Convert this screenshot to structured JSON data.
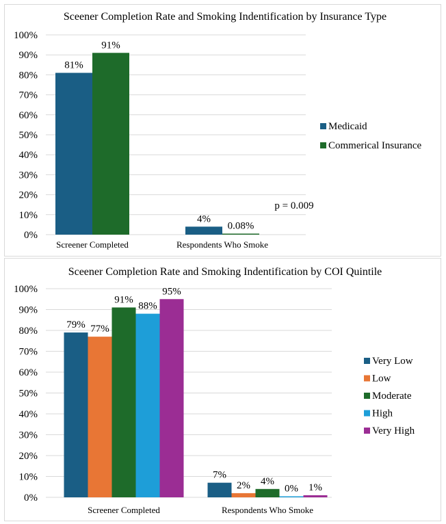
{
  "chart_data": [
    {
      "type": "bar",
      "title": "Sceener Completion Rate and Smoking Indentification by Insurance Type",
      "categories": [
        "Screener Completed",
        "Respondents Who Smoke"
      ],
      "series": [
        {
          "name": "Medicaid",
          "color": "#1a5e85",
          "values": [
            81,
            4
          ],
          "labels": [
            "81%",
            "4%"
          ]
        },
        {
          "name": "Commerical Insurance",
          "color": "#1e6b2a",
          "values": [
            91,
            0.08
          ],
          "labels": [
            "91%",
            "0.08%"
          ]
        }
      ],
      "yticks": [
        "0%",
        "10%",
        "20%",
        "30%",
        "40%",
        "50%",
        "60%",
        "70%",
        "80%",
        "90%",
        "100%"
      ],
      "ylim": [
        0,
        100
      ],
      "xlabel": "",
      "ylabel": "",
      "grid": true,
      "legend": "right",
      "annotations": [
        "p = 0.009"
      ]
    },
    {
      "type": "bar",
      "title": "Sceener Completion Rate and Smoking Indentification by COI Quintile",
      "categories": [
        "Screener Completed",
        "Respondents Who Smoke"
      ],
      "series": [
        {
          "name": "Very Low",
          "color": "#1a5e85",
          "values": [
            79,
            7
          ],
          "labels": [
            "79%",
            "7%"
          ]
        },
        {
          "name": "Low",
          "color": "#e87635",
          "values": [
            77,
            2
          ],
          "labels": [
            "77%",
            "2%"
          ]
        },
        {
          "name": "Moderate",
          "color": "#1e6b2a",
          "values": [
            91,
            4
          ],
          "labels": [
            "91%",
            "4%"
          ]
        },
        {
          "name": "High",
          "color": "#1e9ed8",
          "values": [
            88,
            0
          ],
          "labels": [
            "88%",
            "0%"
          ]
        },
        {
          "name": "Very High",
          "color": "#9b2d94",
          "values": [
            95,
            1
          ],
          "labels": [
            "95%",
            "1%"
          ]
        }
      ],
      "yticks": [
        "0%",
        "10%",
        "20%",
        "30%",
        "40%",
        "50%",
        "60%",
        "70%",
        "80%",
        "90%",
        "100%"
      ],
      "ylim": [
        0,
        100
      ],
      "xlabel": "",
      "ylabel": "",
      "grid": true,
      "legend": "right"
    }
  ]
}
